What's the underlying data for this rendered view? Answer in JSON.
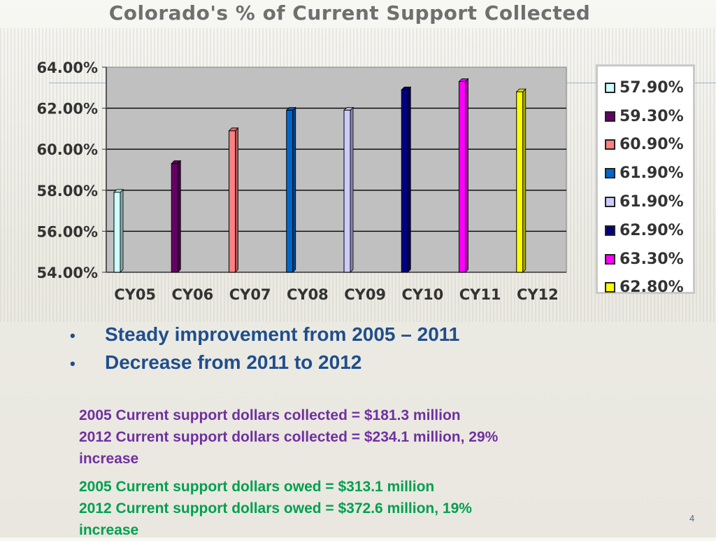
{
  "slide": {
    "title": "Colorado's % of Current Support Collected",
    "page_number": "4"
  },
  "chart_data": {
    "type": "bar",
    "title": "Colorado's % of Current Support Collected",
    "categories": [
      "CY05",
      "CY06",
      "CY07",
      "CY08",
      "CY09",
      "CY10",
      "CY11",
      "CY12"
    ],
    "values": [
      57.9,
      59.3,
      60.9,
      61.9,
      61.9,
      62.9,
      63.3,
      62.8
    ],
    "ylim": [
      54,
      64
    ],
    "y_ticks": [
      "54.00%",
      "56.00%",
      "58.00%",
      "60.00%",
      "62.00%",
      "64.00%"
    ],
    "grid": true,
    "legend_position": "right",
    "legend_entries": [
      "57.90%",
      "59.30%",
      "60.90%",
      "61.90%",
      "61.90%",
      "62.90%",
      "63.30%",
      "62.80%"
    ],
    "colors": [
      "#ccffff",
      "#660066",
      "#ff8080",
      "#0066cc",
      "#ccccff",
      "#000080",
      "#ff00ff",
      "#ffff00"
    ],
    "plot_background": "#c0c0c0"
  },
  "bullets": [
    "Steady improvement from 2005 – 2011",
    "Decrease from 2011 to 2012"
  ],
  "bullet_symbol": "•",
  "notes_collected": [
    "2005 Current support dollars collected = $181.3 million",
    "2012 Current support dollars collected = $234.1 million, 29%",
    "increase"
  ],
  "notes_owed": [
    "2005 Current support dollars owed = $313.1 million",
    "2012 Current support dollars owed = $372.6 million, 19%",
    "increase"
  ],
  "colors": {
    "bullet_text": "#1f4e8c",
    "collected_text": "#7030a0",
    "owed_text": "#00a050"
  }
}
